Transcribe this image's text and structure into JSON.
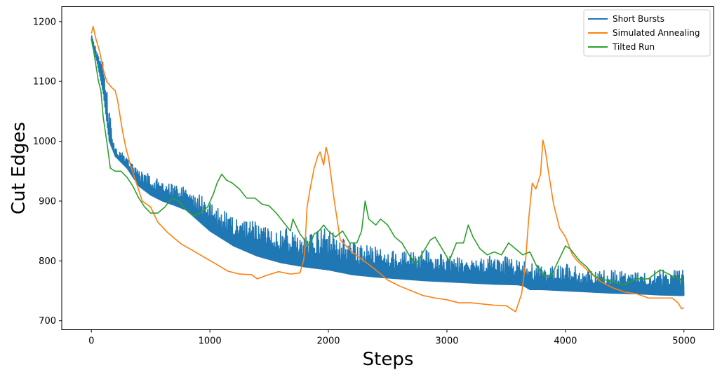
{
  "chart_data": {
    "type": "line",
    "title": "",
    "xlabel": "Steps",
    "ylabel": "Cut Edges",
    "xlim": [
      -250,
      5250
    ],
    "ylim": [
      685,
      1225
    ],
    "xticks": [
      0,
      1000,
      2000,
      3000,
      4000,
      5000
    ],
    "yticks": [
      700,
      800,
      900,
      1000,
      1100,
      1200
    ],
    "grid": false,
    "legend_position": "top-right",
    "series": [
      {
        "name": "Short Bursts",
        "color": "#1f77b4",
        "style": "band",
        "x": [
          0,
          50,
          100,
          150,
          200,
          300,
          400,
          500,
          600,
          700,
          800,
          1000,
          1200,
          1400,
          1600,
          1800,
          2000,
          2200,
          2400,
          2600,
          2800,
          3000,
          3200,
          3400,
          3600,
          3650,
          3700,
          3800,
          4000,
          4200,
          4400,
          4600,
          4800,
          5000
        ],
        "low": [
          1170,
          1130,
          1080,
          1000,
          975,
          955,
          925,
          910,
          900,
          893,
          885,
          850,
          825,
          808,
          797,
          790,
          785,
          777,
          773,
          770,
          767,
          765,
          763,
          761,
          760,
          758,
          752,
          752,
          750,
          748,
          746,
          745,
          743,
          742
        ],
        "high": [
          1178,
          1160,
          1130,
          1060,
          990,
          975,
          950,
          945,
          935,
          930,
          925,
          900,
          875,
          865,
          860,
          845,
          855,
          830,
          825,
          815,
          820,
          810,
          800,
          810,
          805,
          800,
          800,
          790,
          795,
          785,
          785,
          780,
          785,
          785
        ]
      },
      {
        "name": "Simulated Annealing",
        "color": "#ff7f0e",
        "style": "line",
        "x": [
          0,
          15,
          40,
          70,
          100,
          130,
          170,
          200,
          220,
          260,
          290,
          330,
          380,
          430,
          500,
          560,
          640,
          760,
          850,
          980,
          1050,
          1150,
          1250,
          1350,
          1400,
          1480,
          1580,
          1680,
          1760,
          1790,
          1800,
          1820,
          1850,
          1880,
          1910,
          1930,
          1960,
          1980,
          2000,
          2050,
          2100,
          2200,
          2300,
          2400,
          2500,
          2600,
          2700,
          2800,
          2900,
          3000,
          3100,
          3200,
          3300,
          3400,
          3500,
          3580,
          3630,
          3660,
          3690,
          3720,
          3750,
          3790,
          3810,
          3830,
          3860,
          3900,
          3950,
          4000,
          4060,
          4100,
          4200,
          4300,
          4400,
          4500,
          4600,
          4700,
          4800,
          4900,
          4950,
          4980,
          5000
        ],
        "y": [
          1180,
          1192,
          1170,
          1150,
          1120,
          1100,
          1090,
          1085,
          1070,
          1020,
          990,
          960,
          930,
          900,
          890,
          865,
          848,
          828,
          818,
          803,
          795,
          783,
          778,
          777,
          770,
          776,
          782,
          778,
          780,
          800,
          815,
          890,
          925,
          955,
          975,
          982,
          960,
          990,
          975,
          900,
          835,
          815,
          800,
          785,
          768,
          758,
          750,
          742,
          738,
          735,
          730,
          730,
          728,
          726,
          725,
          715,
          745,
          790,
          870,
          930,
          920,
          945,
          1002,
          985,
          945,
          895,
          855,
          840,
          810,
          800,
          782,
          765,
          755,
          748,
          745,
          738,
          738,
          738,
          730,
          720,
          722
        ]
      },
      {
        "name": "Tilted Run",
        "color": "#2ca02c",
        "style": "line",
        "x": [
          0,
          20,
          40,
          60,
          80,
          100,
          130,
          160,
          200,
          250,
          300,
          350,
          400,
          450,
          500,
          560,
          620,
          680,
          740,
          800,
          860,
          920,
          980,
          1030,
          1060,
          1100,
          1140,
          1190,
          1250,
          1310,
          1380,
          1440,
          1500,
          1560,
          1620,
          1680,
          1700,
          1760,
          1800,
          1840,
          1880,
          1920,
          1960,
          2000,
          2060,
          2120,
          2180,
          2240,
          2280,
          2310,
          2340,
          2400,
          2440,
          2500,
          2560,
          2620,
          2680,
          2740,
          2800,
          2860,
          2900,
          2960,
          3020,
          3080,
          3140,
          3180,
          3220,
          3280,
          3340,
          3400,
          3460,
          3520,
          3580,
          3640,
          3700,
          3760,
          3820,
          3880,
          3940,
          4000,
          4040,
          4080,
          4120,
          4180,
          4240,
          4300,
          4400,
          4500,
          4600,
          4700,
          4800,
          4900,
          4960,
          5000
        ],
        "y": [
          1170,
          1150,
          1125,
          1100,
          1085,
          1040,
          1000,
          955,
          950,
          950,
          940,
          925,
          905,
          890,
          880,
          880,
          890,
          905,
          900,
          885,
          875,
          880,
          890,
          912,
          930,
          945,
          935,
          930,
          920,
          905,
          905,
          895,
          892,
          880,
          865,
          850,
          870,
          845,
          835,
          825,
          845,
          850,
          860,
          850,
          840,
          850,
          830,
          830,
          850,
          900,
          870,
          860,
          870,
          860,
          840,
          830,
          810,
          795,
          815,
          835,
          840,
          820,
          800,
          830,
          830,
          860,
          840,
          820,
          810,
          815,
          810,
          830,
          820,
          810,
          815,
          790,
          775,
          775,
          800,
          825,
          820,
          810,
          800,
          790,
          775,
          770,
          765,
          760,
          770,
          770,
          785,
          775,
          770,
          765
        ]
      }
    ]
  }
}
